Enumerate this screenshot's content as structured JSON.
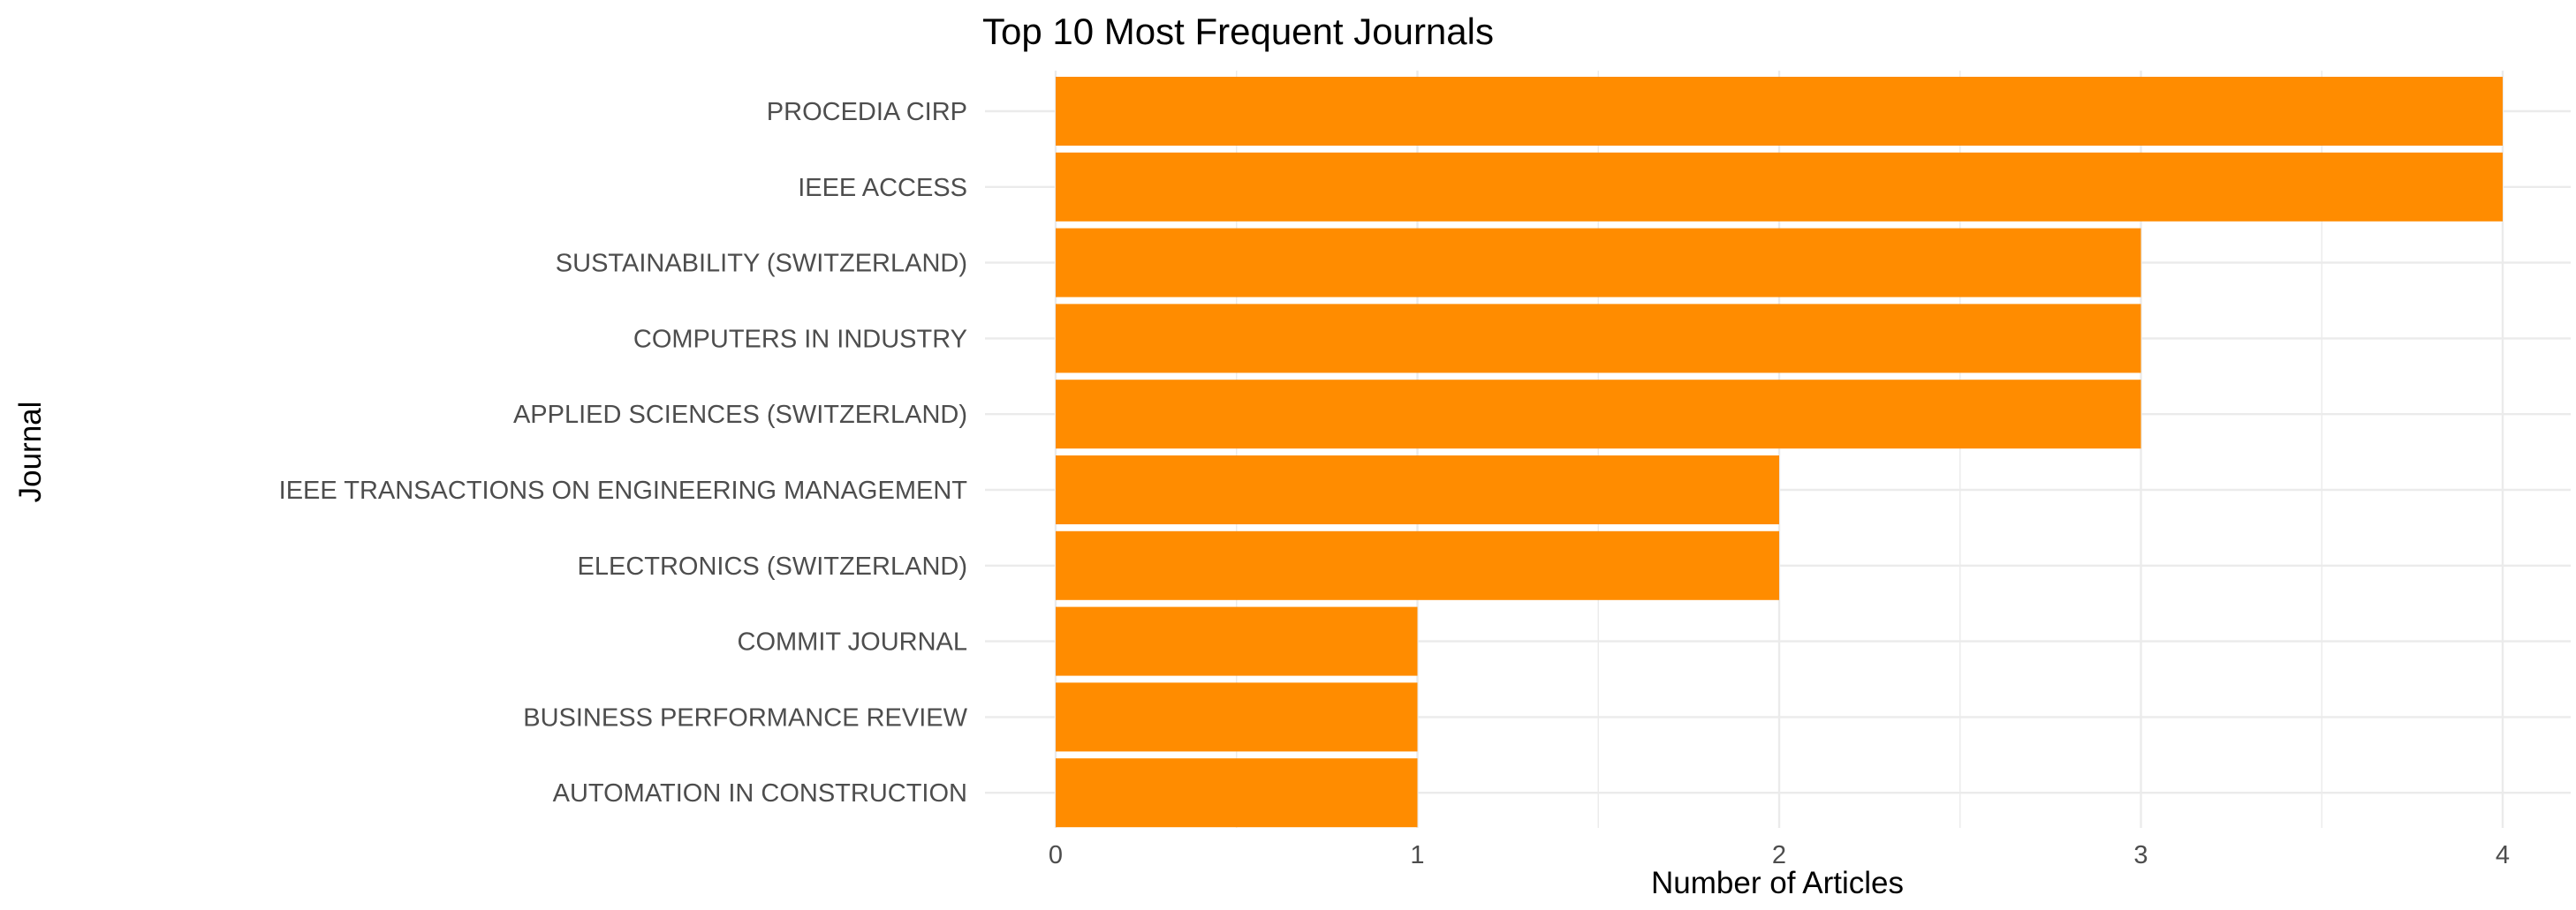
{
  "chart_data": {
    "type": "bar",
    "orientation": "horizontal",
    "title": "Top 10 Most Frequent Journals",
    "xlabel": "Number of Articles",
    "ylabel": "Journal",
    "categories": [
      "PROCEDIA CIRP",
      "IEEE ACCESS",
      "SUSTAINABILITY (SWITZERLAND)",
      "COMPUTERS IN INDUSTRY",
      "APPLIED SCIENCES (SWITZERLAND)",
      "IEEE TRANSACTIONS ON ENGINEERING MANAGEMENT",
      "ELECTRONICS (SWITZERLAND)",
      "COMMIT JOURNAL",
      "BUSINESS PERFORMANCE REVIEW",
      "AUTOMATION IN CONSTRUCTION"
    ],
    "values": [
      4,
      4,
      3,
      3,
      3,
      2,
      2,
      1,
      1,
      1
    ],
    "xlim": [
      0,
      4
    ],
    "x_ticks": [
      "0",
      "1",
      "2",
      "3",
      "4"
    ],
    "grid": true,
    "bar_color": "#ff8c00",
    "grid_color": "#ebebeb"
  }
}
